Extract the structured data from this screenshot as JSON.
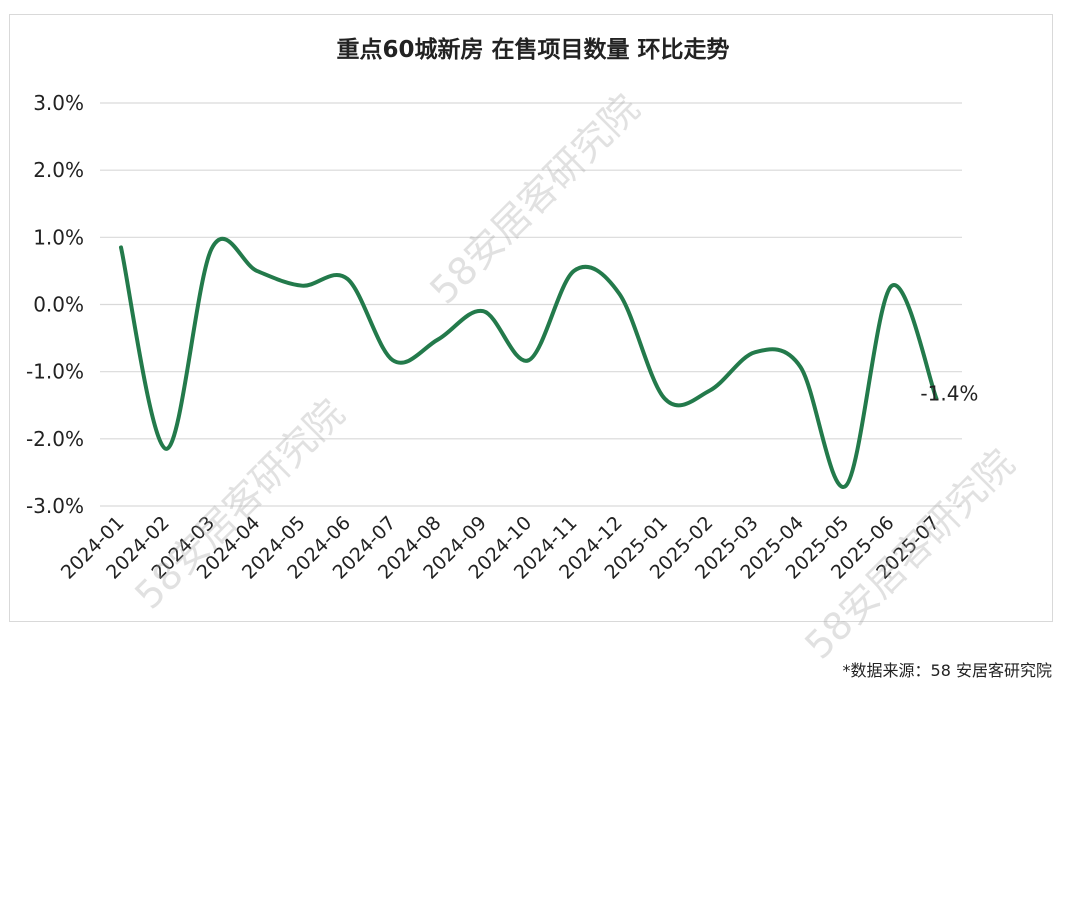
{
  "title": "重点60城新房 在售项目数量 环比走势",
  "source_note": "*数据来源：58 安居客研究院",
  "watermark": "58安居客研究院",
  "colors": {
    "line": "#237a4b",
    "grid": "#d9d9d9",
    "text": "#222222"
  },
  "chart_data": {
    "type": "line",
    "title": "重点60城新房 在售项目数量 环比走势",
    "categories": [
      "2024-01",
      "2024-02",
      "2024-03",
      "2024-04",
      "2024-05",
      "2024-06",
      "2024-07",
      "2024-08",
      "2024-09",
      "2024-10",
      "2024-11",
      "2024-12",
      "2025-01",
      "2025-02",
      "2025-03",
      "2025-04",
      "2025-05",
      "2025-06",
      "2025-07"
    ],
    "series": [
      {
        "values": [
          0.85,
          -2.15,
          0.83,
          0.5,
          0.28,
          0.38,
          -0.83,
          -0.52,
          -0.1,
          -0.83,
          0.5,
          0.16,
          -1.4,
          -1.28,
          -0.71,
          -0.93,
          -2.7,
          0.27,
          -1.4
        ]
      }
    ],
    "ylim": [
      -3.0,
      3.0
    ],
    "yticks": [
      3.0,
      2.0,
      1.0,
      0.0,
      -1.0,
      -2.0,
      -3.0
    ],
    "ytick_labels": [
      "3.0%",
      "2.0%",
      "1.0%",
      "0.0%",
      "-1.0%",
      "-2.0%",
      "-3.0%"
    ],
    "grid": true,
    "legend": "none",
    "annotations": [
      {
        "category": "2025-07",
        "text": "-1.4%"
      }
    ]
  }
}
